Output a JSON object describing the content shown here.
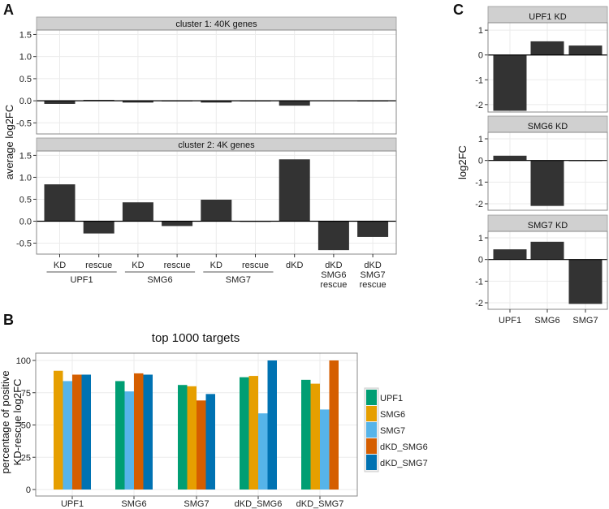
{
  "panels": {
    "a": "A",
    "b": "B",
    "c": "C"
  },
  "chart_data": [
    {
      "type": "bar",
      "id": "A",
      "ylabel": "average log2FC",
      "ylim": [
        -0.75,
        1.6
      ],
      "yticks": [
        -0.5,
        0.0,
        0.5,
        1.0,
        1.5
      ],
      "ytick_labels": [
        "-0.5",
        "0.0",
        "0.5",
        "1.0",
        "1.5"
      ],
      "categories": [
        "KD",
        "rescue",
        "KD",
        "rescue",
        "KD",
        "rescue",
        "dKD",
        "dKD SMG6 rescue",
        "dKD SMG7 rescue"
      ],
      "category_lines": [
        [
          "KD"
        ],
        [
          "rescue"
        ],
        [
          "KD"
        ],
        [
          "rescue"
        ],
        [
          "KD"
        ],
        [
          "rescue"
        ],
        [
          "dKD"
        ],
        [
          "dKD",
          "SMG6",
          "rescue"
        ],
        [
          "dKD",
          "SMG7",
          "rescue"
        ]
      ],
      "groups": [
        {
          "label": "UPF1",
          "from": 0,
          "to": 1
        },
        {
          "label": "SMG6",
          "from": 2,
          "to": 3
        },
        {
          "label": "SMG7",
          "from": 4,
          "to": 5
        }
      ],
      "facets": [
        {
          "title": "cluster 1: 40K genes",
          "values": [
            -0.07,
            0.02,
            -0.04,
            0.0,
            -0.04,
            0.0,
            -0.11,
            0.01,
            0.0
          ]
        },
        {
          "title": "cluster 2: 4K genes",
          "values": [
            0.84,
            -0.28,
            0.43,
            -0.11,
            0.49,
            0.0,
            1.41,
            -0.66,
            -0.36
          ]
        }
      ]
    },
    {
      "type": "bar",
      "id": "B",
      "title": "top 1000 targets",
      "ylabel": [
        "percentage of positive",
        "KD-rescue log2FC"
      ],
      "ylim": [
        0,
        100
      ],
      "yticks": [
        0,
        25,
        50,
        75,
        100
      ],
      "ytick_labels": [
        "0",
        "25",
        "50",
        "75",
        "100"
      ],
      "categories": [
        "UPF1",
        "SMG6",
        "SMG7",
        "dKD_SMG6",
        "dKD_SMG7"
      ],
      "legend_position": "right",
      "series": [
        {
          "name": "UPF1",
          "color": "#009E73",
          "values": [
            null,
            84,
            81,
            87,
            85
          ]
        },
        {
          "name": "SMG6",
          "color": "#E69F00",
          "values": [
            92,
            null,
            80,
            88,
            82
          ]
        },
        {
          "name": "SMG7",
          "color": "#56B4E9",
          "values": [
            84,
            76,
            null,
            59,
            62
          ]
        },
        {
          "name": "dKD_SMG6",
          "color": "#D55E00",
          "values": [
            89,
            90,
            69,
            null,
            100
          ]
        },
        {
          "name": "dKD_SMG7",
          "color": "#0072B2",
          "values": [
            89,
            89,
            74,
            100,
            null
          ]
        }
      ]
    },
    {
      "type": "bar",
      "id": "C",
      "ylabel": "log2FC",
      "ylim": [
        -2.3,
        1.3
      ],
      "yticks": [
        -2,
        -1,
        0,
        1
      ],
      "ytick_labels": [
        "-2",
        "-1",
        "0",
        "1"
      ],
      "categories": [
        "UPF1",
        "SMG6",
        "SMG7"
      ],
      "facets": [
        {
          "title": "UPF1  KD",
          "values": [
            -2.25,
            0.55,
            0.38
          ]
        },
        {
          "title": "SMG6  KD",
          "values": [
            0.22,
            -2.1,
            -0.02
          ]
        },
        {
          "title": "SMG7  KD",
          "values": [
            0.47,
            0.82,
            -2.05
          ]
        }
      ]
    }
  ]
}
